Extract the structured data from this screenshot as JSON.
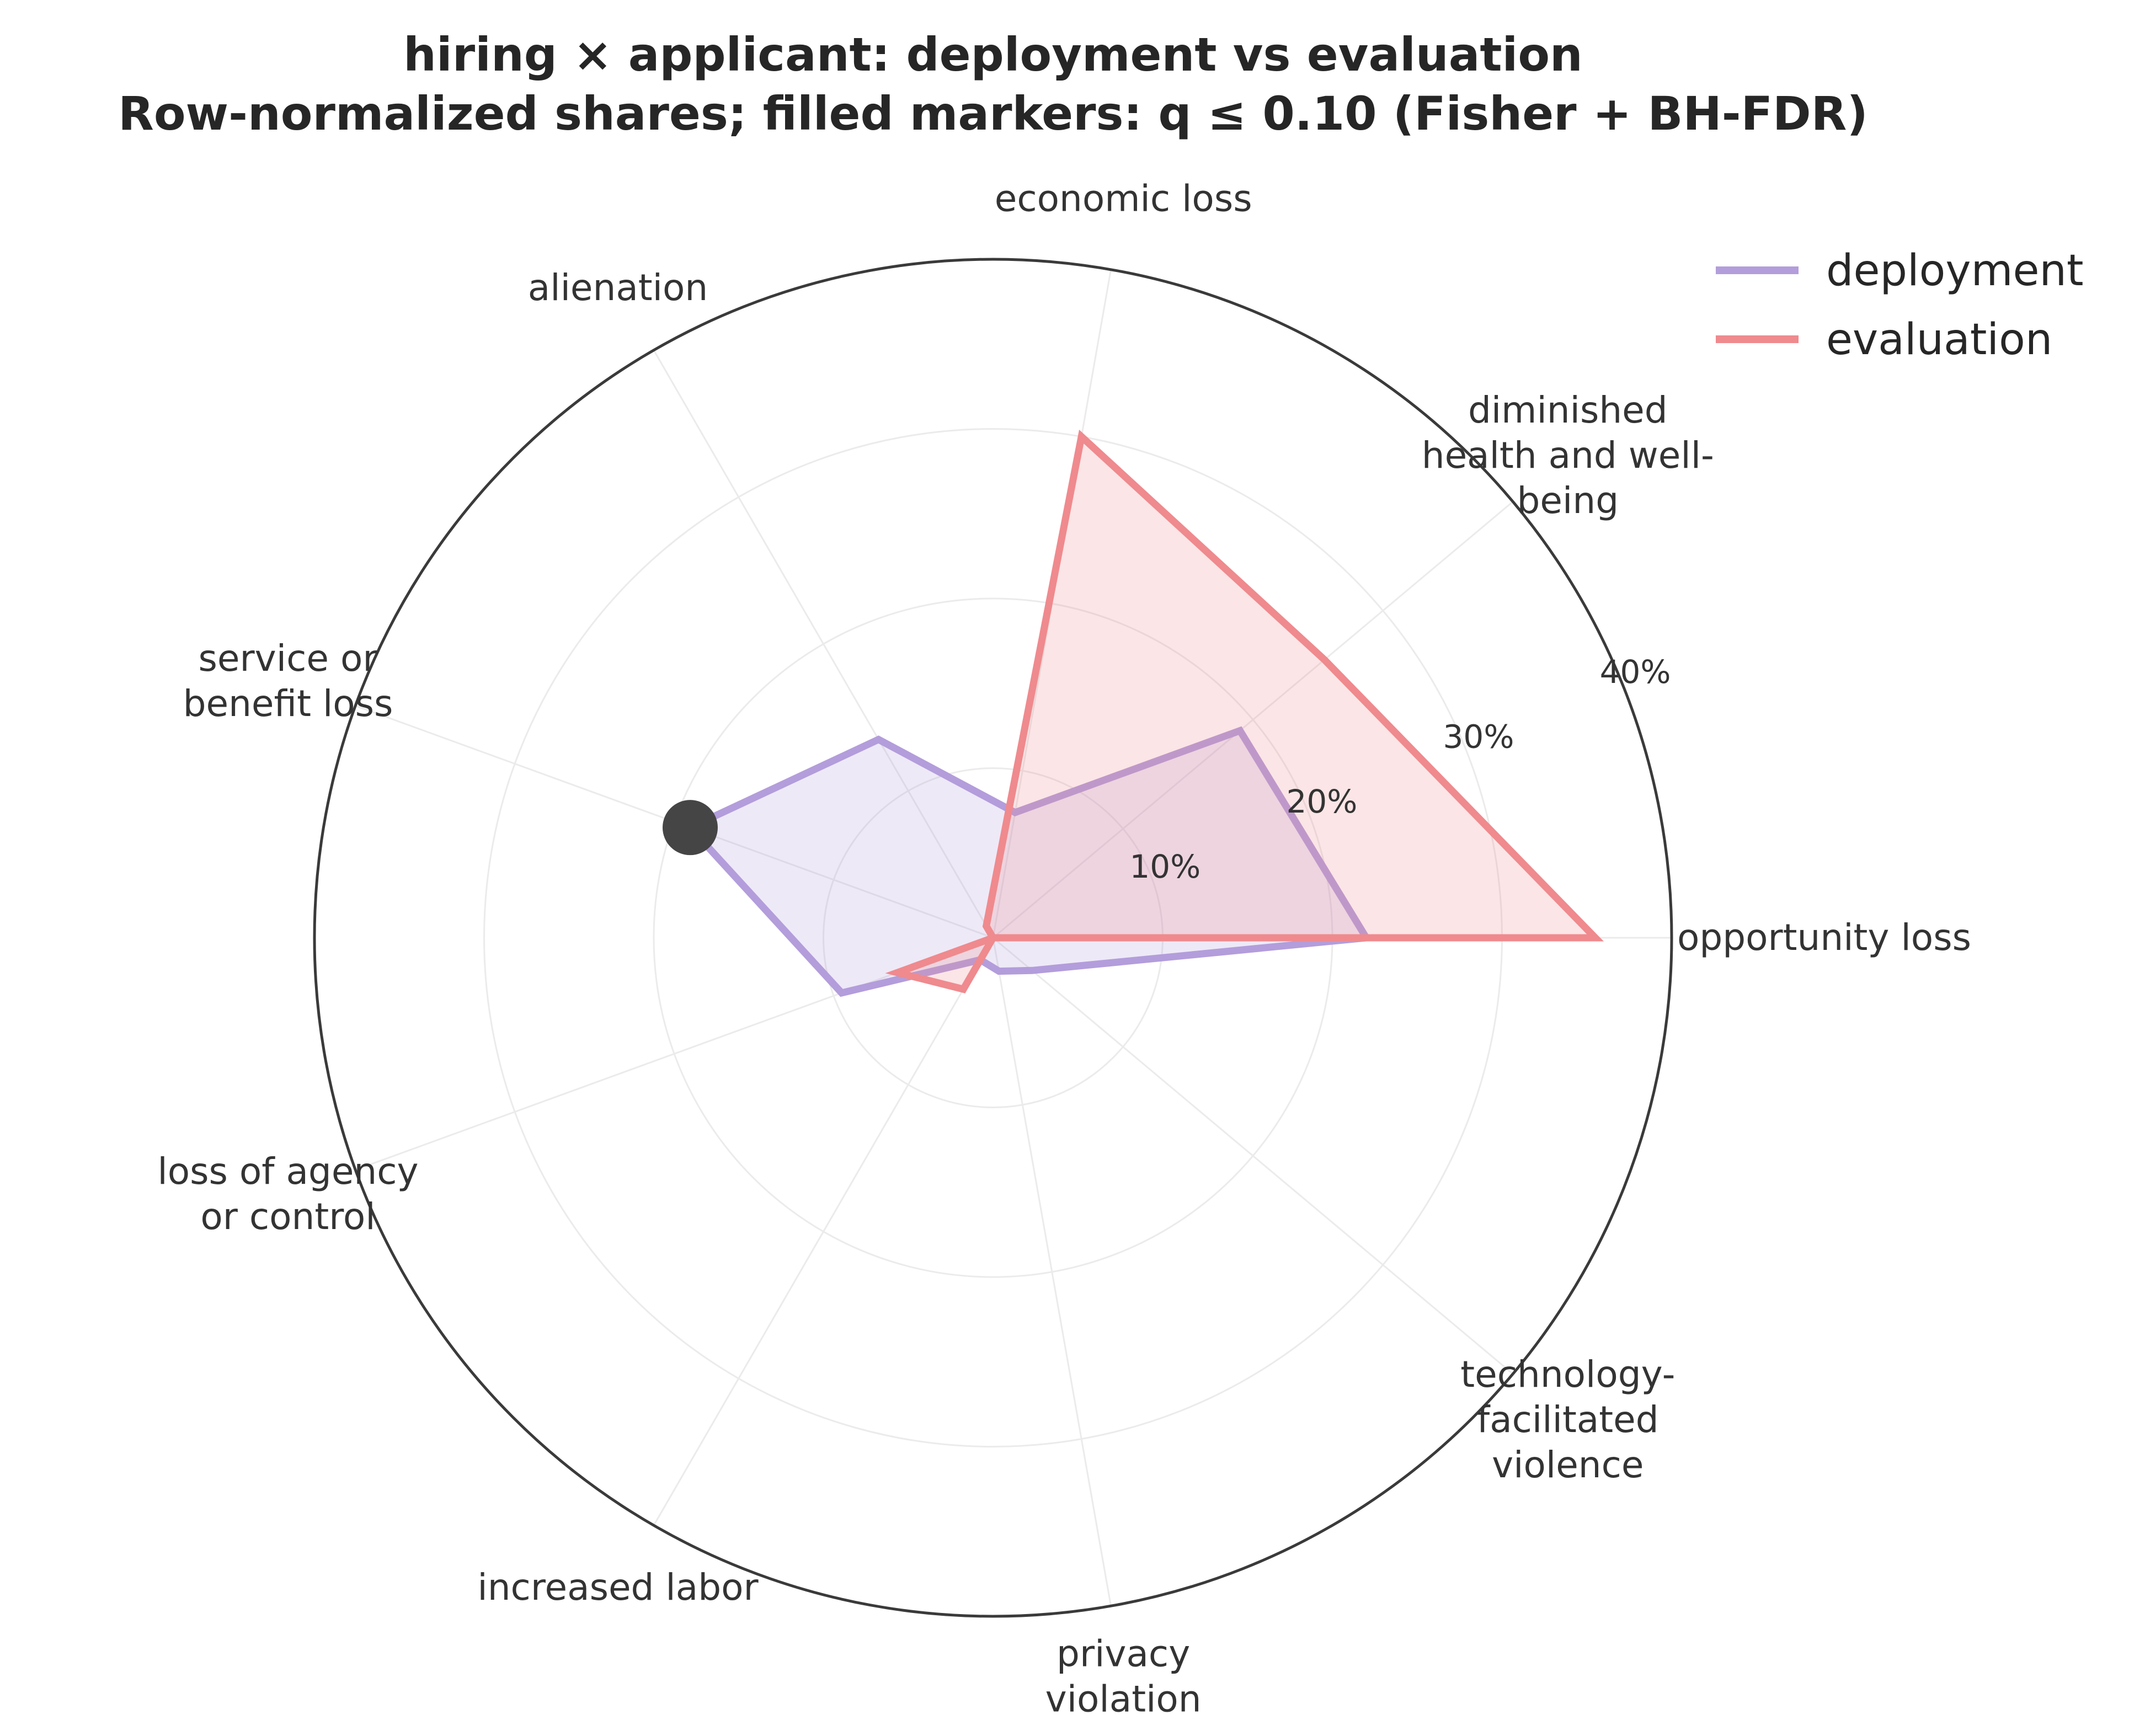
{
  "chart_data": {
    "type": "radar",
    "title_line1": "hiring × applicant: deployment vs evaluation",
    "title_line2": "Row-normalized shares; filled markers: q ≤ 0.10 (Fisher + BH-FDR)",
    "categories": [
      [
        "opportunity loss"
      ],
      [
        "diminished",
        "health and well-",
        "being"
      ],
      [
        "economic loss"
      ],
      [
        "alienation"
      ],
      [
        "service or",
        "benefit loss"
      ],
      [
        "loss of agency",
        "or control"
      ],
      [
        "increased labor"
      ],
      [
        "privacy",
        "violation"
      ],
      [
        "technology-",
        "facilitated",
        "violence"
      ]
    ],
    "rmax": 40,
    "rticks": [
      10,
      20,
      30,
      40
    ],
    "rtick_labels": [
      "10%",
      "20%",
      "30%",
      "40%"
    ],
    "series": [
      {
        "name": "deployment",
        "color": "#b39ddb",
        "values": [
          22.0,
          19.0,
          7.5,
          13.5,
          19.0,
          9.5,
          1.5,
          2.0,
          3.0
        ]
      },
      {
        "name": "evaluation",
        "color": "#ef8a8e",
        "values": [
          35.5,
          25.5,
          30.0,
          0.8,
          0.0,
          6.0,
          3.5,
          0.0,
          0.0
        ]
      }
    ],
    "significant_markers": [
      {
        "series": "deployment",
        "category_index": 4,
        "color": "#454545"
      }
    ],
    "legend_position": "top-right"
  }
}
